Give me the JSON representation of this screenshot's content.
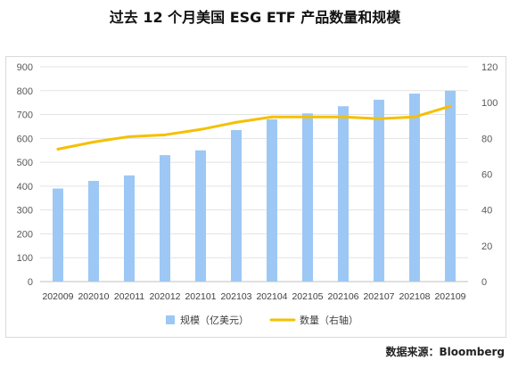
{
  "title": "过去 12 个月美国 ESG ETF 产品数量和规模",
  "source": "数据来源：Bloomberg",
  "chart_data": {
    "type": "bar",
    "categories": [
      "202009",
      "202010",
      "202011",
      "202012",
      "202101",
      "202103",
      "202104",
      "202105",
      "202106",
      "202107",
      "202108",
      "202109"
    ],
    "series": [
      {
        "name": "规模（亿美元）",
        "type": "bar",
        "axis": "left",
        "color": "#9dc8f5",
        "values": [
          390,
          422,
          445,
          530,
          550,
          635,
          680,
          705,
          735,
          762,
          788,
          800
        ]
      },
      {
        "name": "数量（右轴）",
        "type": "line",
        "axis": "right",
        "color": "#f5c000",
        "values": [
          74,
          78,
          81,
          82,
          85,
          89,
          92,
          92,
          92,
          91,
          92,
          98
        ]
      }
    ],
    "y_left": {
      "min": 0,
      "max": 900,
      "ticks": [
        0,
        100,
        200,
        300,
        400,
        500,
        600,
        700,
        800,
        900
      ]
    },
    "y_right": {
      "min": 0,
      "max": 120,
      "ticks": [
        0,
        20,
        40,
        60,
        80,
        100,
        120
      ]
    },
    "grid": true,
    "legend_position": "bottom"
  }
}
